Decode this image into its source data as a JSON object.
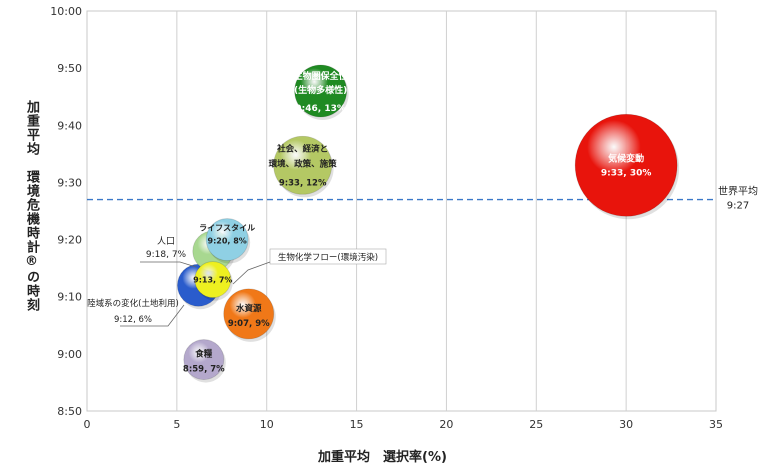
{
  "chart_data": {
    "type": "scatter",
    "subtype": "bubble",
    "title": "",
    "xlabel": "加重平均　選択率(%)",
    "ylabel": "加重平均　環境危機時計®の時刻",
    "xlim": [
      0,
      35
    ],
    "ylim_minutes": [
      530,
      600
    ],
    "x_ticks": [
      "0",
      "5",
      "10",
      "15",
      "20",
      "25",
      "30",
      "35"
    ],
    "y_ticks": [
      "8:50",
      "9:00",
      "9:10",
      "9:20",
      "9:30",
      "9:40",
      "9:50",
      "10:00"
    ],
    "grid": "vertical",
    "reference_line": {
      "label_line1": "世界平均",
      "label_line2": "9:27",
      "y_minutes": 567
    },
    "points": [
      {
        "name": "気候変動",
        "value_label": "9:33, 30%",
        "x": 30,
        "y_minutes": 573,
        "color": "#e8140c"
      },
      {
        "name": "生物圏保全性",
        "name2": "(生物多様性)",
        "value_label": "9:46, 13%",
        "x": 13,
        "y_minutes": 586,
        "color": "#1f8a22"
      },
      {
        "name": "社会、経済と",
        "name2": "環境、政策、施策",
        "value_label": "9:33, 12%",
        "x": 12,
        "y_minutes": 573,
        "color": "#b4c864"
      },
      {
        "name": "ライフスタイル",
        "value_label": "9:20, 8%",
        "x": 7.8,
        "y_minutes": 560,
        "color": "#8fd0e4"
      },
      {
        "name": "人口",
        "value_label": "9:18, 7%",
        "x": 7,
        "y_minutes": 558,
        "color": "#a8d890",
        "callout": true
      },
      {
        "name": "生物化学フロー(環境汚染)",
        "value_label": "9:13, 7%",
        "x": 7,
        "y_minutes": 553,
        "color": "#eef020",
        "callout": true
      },
      {
        "name": "陸域系の変化(土地利用)",
        "value_label": "9:12, 6%",
        "x": 6.2,
        "y_minutes": 552,
        "color": "#2a5ccc",
        "callout": true
      },
      {
        "name": "水資源",
        "value_label": "9:07, 9%",
        "x": 9,
        "y_minutes": 547,
        "color": "#f07818"
      },
      {
        "name": "食糧",
        "value_label": "8:59, 7%",
        "x": 6.5,
        "y_minutes": 539,
        "color": "#b4a8cc"
      }
    ]
  }
}
